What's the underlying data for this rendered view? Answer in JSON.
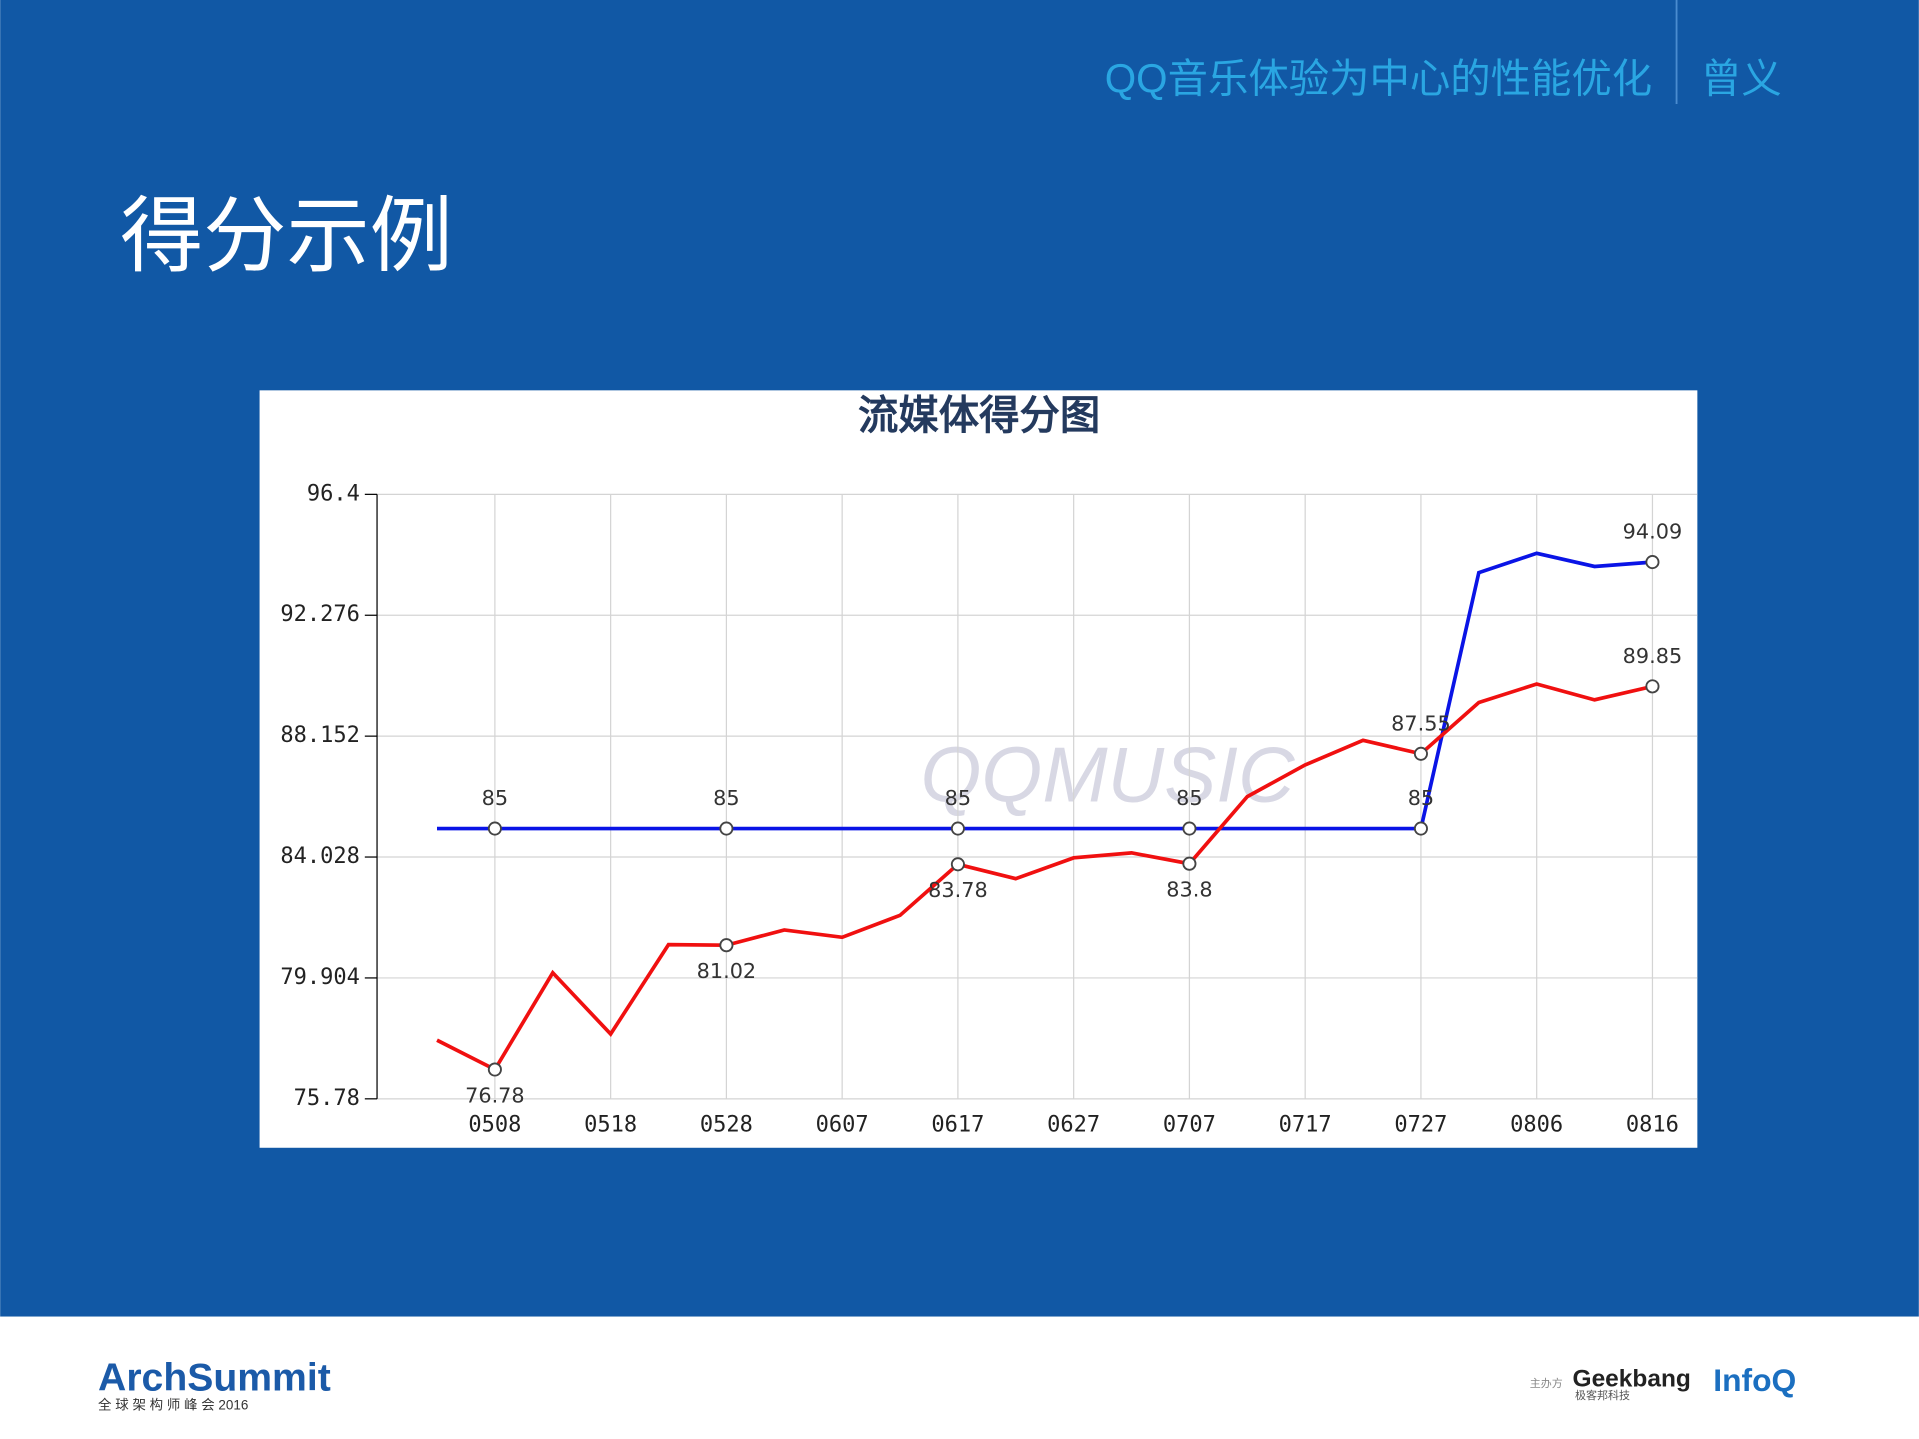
{
  "header": {
    "subtitle": "QQ音乐体验为中心的性能优化",
    "author": "曾义"
  },
  "title": "得分示例",
  "chart_data": {
    "type": "line",
    "title": "流媒体得分图",
    "watermark": "QQMUSIC",
    "categories": [
      null,
      "0508",
      null,
      "0518",
      null,
      "0528",
      null,
      "0607",
      null,
      "0617",
      null,
      "0627",
      null,
      "0707",
      null,
      "0717",
      null,
      "0727",
      null,
      "0806",
      null,
      "0816"
    ],
    "series": [
      {
        "name": "blue",
        "color": "#0a14e6",
        "values": [
          85,
          85,
          85,
          85,
          85,
          85,
          85,
          85,
          85,
          85,
          85,
          85,
          85,
          85,
          85,
          85,
          85,
          85,
          93.73,
          94.39,
          93.94,
          94.09
        ],
        "value_labels": [
          null,
          "85",
          null,
          null,
          null,
          "85",
          null,
          null,
          null,
          "85",
          null,
          null,
          null,
          "85",
          null,
          null,
          null,
          "85",
          null,
          null,
          null,
          "94.09"
        ]
      },
      {
        "name": "red",
        "color": "#f01010",
        "values": [
          77.78,
          76.78,
          80.08,
          77.99,
          81.04,
          81.02,
          81.54,
          81.29,
          82.04,
          83.78,
          83.29,
          84.0,
          84.17,
          83.8,
          86.09,
          87.17,
          88.01,
          87.55,
          89.3,
          89.93,
          89.39,
          89.85
        ],
        "value_labels": [
          null,
          "76.78",
          null,
          null,
          null,
          "81.02",
          null,
          null,
          null,
          "83.78",
          null,
          null,
          null,
          "83.8",
          null,
          null,
          null,
          "87.55",
          null,
          null,
          null,
          "89.85"
        ]
      }
    ],
    "ylim": [
      75.78,
      96.4
    ],
    "yticks": [
      75.78,
      79.904,
      84.028,
      88.152,
      92.276,
      96.4
    ],
    "grid": true
  },
  "footer": {
    "logo": "ArchSummit",
    "logo_sub": "全 球 架 构 师 峰 会 2016",
    "host": "主办方",
    "geekbang": "Geekbang",
    "geekbang_sub": "极客邦科技",
    "infoq": "InfoQ"
  }
}
